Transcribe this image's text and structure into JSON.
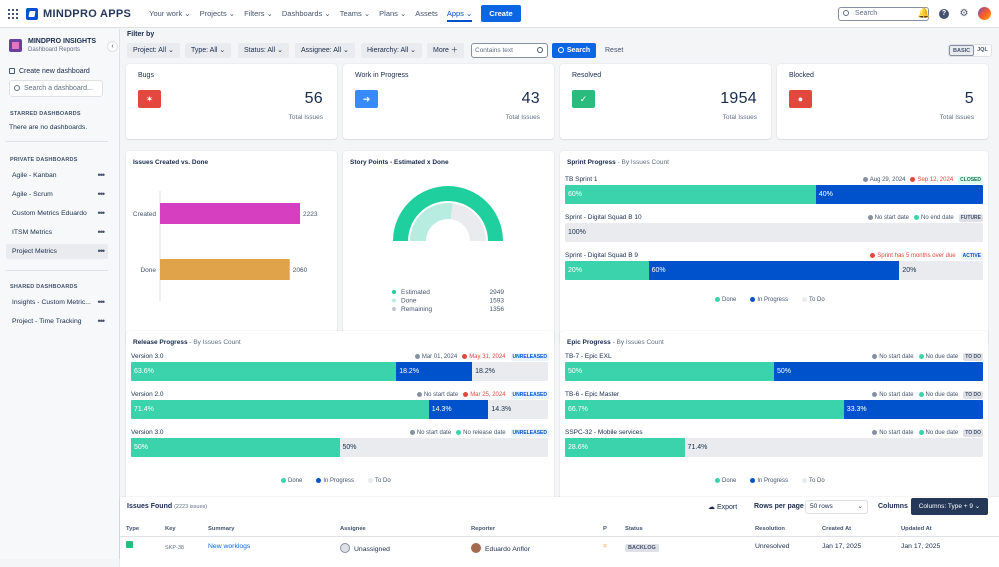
{
  "topbar": {
    "brand": "MINDPRO APPS",
    "nav": [
      "Your work ⌄",
      "Projects ⌄",
      "Filters ⌄",
      "Dashboards ⌄",
      "Teams ⌄",
      "Plans ⌄",
      "Assets",
      "Apps ⌄"
    ],
    "create": "Create",
    "search_placeholder": "Search"
  },
  "sidebar": {
    "project_name": "MINDPRO INSIGHTS",
    "project_sub": "Dashboard Reports",
    "create_new": "Create new dashboard",
    "search_placeholder": "Search a dashboard...",
    "starred_heading": "STARRED DASHBOARDS",
    "starred_empty": "There are no dashboards.",
    "private_heading": "PRIVATE DASHBOARDS",
    "private_items": [
      "Agile - Kanban",
      "Agile - Scrum",
      "Custom Metrics Eduardo",
      "ITSM Metrics",
      "Project Metrics"
    ],
    "shared_heading": "SHARED DASHBOARDS",
    "shared_items": [
      "Insights - Custom Metric...",
      "Project - Time Tracking"
    ]
  },
  "filters": {
    "label": "Filter by",
    "project": "Project: All ⌄",
    "type": "Type: All ⌄",
    "status": "Status: All ⌄",
    "assignee": "Assignee: All ⌄",
    "hierarchy": "Hierarchy: All ⌄",
    "more": "More ＋",
    "contains_placeholder": "Contains text",
    "search": "Search",
    "reset": "Reset",
    "basic": "BASIC",
    "jql": "JQL"
  },
  "kpis": [
    {
      "title": "Bugs",
      "value": "56",
      "sub": "Total Issues",
      "color": "#e2483d"
    },
    {
      "title": "Work in Progress",
      "value": "43",
      "sub": "Total Issues",
      "color": "#388bff"
    },
    {
      "title": "Resolved",
      "value": "1954",
      "sub": "Total Issues",
      "color": "#2abb7f"
    },
    {
      "title": "Blocked",
      "value": "5",
      "sub": "Total Issues",
      "color": "#e2483d"
    }
  ],
  "chart_data": [
    {
      "type": "bar",
      "title": "Issues Created vs. Done",
      "categories": [
        "Created",
        "Done"
      ],
      "values": [
        2223,
        2060
      ],
      "colors": [
        "#d63fbf",
        "#e0a34a"
      ]
    },
    {
      "type": "pie",
      "title": "Story Points - Estimated x Done",
      "labels": [
        "Estimated",
        "Done",
        "Remaining"
      ],
      "values": [
        2949,
        1593,
        1356
      ]
    }
  ],
  "sprint": {
    "title": "Sprint Progress",
    "sub": " - By Issues Count",
    "rows": [
      {
        "name": "TB Sprint 1",
        "start": "Aug 29, 2024",
        "end": "Sep 12, 2024",
        "tag": "CLOSED",
        "done": 60,
        "prog": 40,
        "todo": 0,
        "done_l": "60%",
        "prog_l": "40%",
        "todo_l": ""
      },
      {
        "name": "Sprint - Digital Squad B 10",
        "start": "No start date",
        "end": "No end date",
        "tag": "FUTURE",
        "done": 0,
        "prog": 0,
        "todo": 100,
        "done_l": "",
        "prog_l": "",
        "todo_l": "100%"
      },
      {
        "name": "Sprint - Digital Squad B 9",
        "start": "",
        "end": "Sprint has 5 months over due",
        "tag": "ACTIVE",
        "done": 20,
        "prog": 60,
        "todo": 20,
        "done_l": "20%",
        "prog_l": "60%",
        "todo_l": "20%"
      }
    ],
    "legend": [
      "Done",
      "In Progress",
      "To Do"
    ]
  },
  "release": {
    "title": "Release Progress",
    "sub": " - By Issues Count",
    "rows": [
      {
        "name": "Version 3.0",
        "start": "Mar 01, 2024",
        "end": "May 31, 2024",
        "tag": "UNRELEASED",
        "done": 63.6,
        "prog": 18.2,
        "todo": 18.2,
        "done_l": "63.6%",
        "prog_l": "18.2%",
        "todo_l": "18.2%"
      },
      {
        "name": "Version 2.0",
        "start": "No start date",
        "end": "Mar 25, 2024",
        "tag": "UNRELEASED",
        "done": 71.4,
        "prog": 14.3,
        "todo": 14.3,
        "done_l": "71.4%",
        "prog_l": "14.3%",
        "todo_l": "14.3%"
      },
      {
        "name": "Version 3.0",
        "start": "No start date",
        "end": "No release date",
        "tag": "UNRELEASED",
        "done": 50,
        "prog": 0,
        "todo": 50,
        "done_l": "50%",
        "prog_l": "",
        "todo_l": "50%"
      }
    ],
    "legend": [
      "Done",
      "In Progress",
      "To Do"
    ]
  },
  "epic": {
    "title": "Epic Progress",
    "sub": " - By Issues Count",
    "rows": [
      {
        "name": "TB-7 - Epic EXL",
        "start": "No start date",
        "end": "No due date",
        "tag": "TO DO",
        "done": 50,
        "prog": 50,
        "todo": 0,
        "done_l": "50%",
        "prog_l": "50%",
        "todo_l": ""
      },
      {
        "name": "TB-6 - Epic Master",
        "start": "No start date",
        "end": "No due date",
        "tag": "TO DO",
        "done": 66.7,
        "prog": 33.3,
        "todo": 0,
        "done_l": "66.7%",
        "prog_l": "33.3%",
        "todo_l": ""
      },
      {
        "name": "SSPC-32 - Mobile services",
        "start": "No start date",
        "end": "No due date",
        "tag": "TO DO",
        "done": 28.6,
        "prog": 0,
        "todo": 71.4,
        "done_l": "28.6%",
        "prog_l": "",
        "todo_l": "71.4%"
      }
    ],
    "legend": [
      "Done",
      "In Progress",
      "To Do"
    ]
  },
  "issues": {
    "title": "Issues Found",
    "count": "(2223 issues)",
    "export": "Export",
    "rows_per_page": "Rows per page",
    "rows_value": "50 rows",
    "columns": "Columns",
    "columns_btn": "Columns: Type + 9",
    "headers": [
      "Type",
      "Key",
      "Summary",
      "Assignee",
      "Reporter",
      "P",
      "Status",
      "Resolution",
      "Created At",
      "Updated At"
    ],
    "row": {
      "key": "SKP-38",
      "summary": "New worklogs",
      "assignee": "Unassigned",
      "reporter": "Eduardo Anflor",
      "status": "BACKLOG",
      "resolution": "Unresolved",
      "created": "Jan 17, 2025",
      "updated": "Jan 17, 2025"
    }
  }
}
